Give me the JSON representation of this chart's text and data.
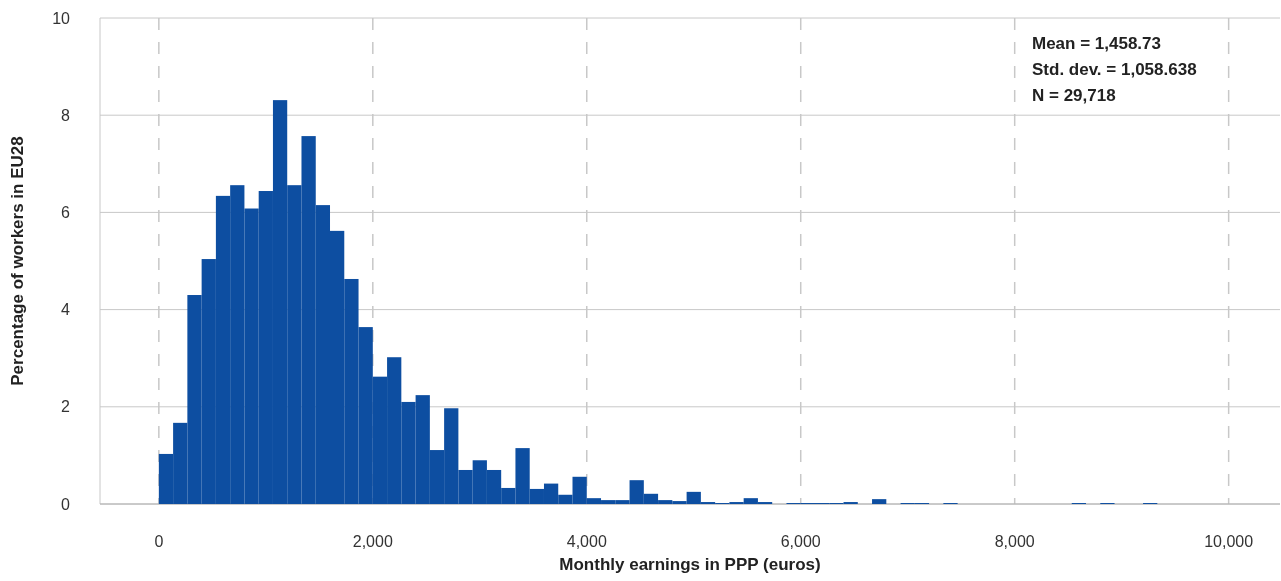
{
  "chart_data": {
    "type": "histogram",
    "xlabel": "Monthly earnings in PPP (euros)",
    "ylabel": "Percentage of workers in EU28",
    "color": "#0d4ea1",
    "bins": [
      0,
      133.33,
      266.67,
      400,
      533.33,
      666.67,
      800,
      933.33,
      1066.67,
      1200,
      1333.33,
      1466.67,
      1600,
      1733.33,
      1866.67,
      2000,
      2133.33,
      2266.67,
      2400,
      2533.33,
      2666.67,
      2800,
      2933.33,
      3066.67,
      3200,
      3333.33,
      3466.67,
      3600,
      3733.33,
      3866.67,
      4000,
      4133.33,
      4266.67,
      4400,
      4533.33,
      4666.67,
      4800,
      4933.33,
      5066.67,
      5200,
      5333.33,
      5466.67,
      5600,
      5733.33,
      5866.67,
      6000,
      6133.33,
      6266.67,
      6400,
      6533.33,
      6666.67,
      6800,
      6933.33,
      7066.67,
      7200,
      7333.33,
      7466.67,
      7600,
      7733.33,
      7866.67,
      8000,
      8133.33,
      8266.67,
      8400,
      8533.33,
      8666.67,
      8800,
      8933.33,
      9066.67,
      9200,
      9333.33
    ],
    "values": [
      1.03,
      1.67,
      4.3,
      5.04,
      6.34,
      6.56,
      6.08,
      6.44,
      8.31,
      6.56,
      7.57,
      6.15,
      5.62,
      4.63,
      3.64,
      2.62,
      3.02,
      2.1,
      2.24,
      1.11,
      1.97,
      0.7,
      0.9,
      0.7,
      0.33,
      1.15,
      0.31,
      0.42,
      0.19,
      0.56,
      0.12,
      0.08,
      0.08,
      0.49,
      0.21,
      0.08,
      0.06,
      0.25,
      0.04,
      0.02,
      0.04,
      0.12,
      0.04,
      0,
      0.02,
      0.02,
      0.02,
      0.02,
      0.04,
      0,
      0.1,
      0,
      0.02,
      0.02,
      0,
      0.02,
      0,
      0,
      0,
      0,
      0,
      0,
      0,
      0,
      0.02,
      0,
      0.02,
      0,
      0,
      0.02
    ],
    "xlim": [
      -550,
      10480
    ],
    "ylim": [
      0,
      10
    ],
    "xticks": [
      0,
      {
        "value": 2000,
        "label": "2,000"
      },
      {
        "value": 4000,
        "label": "4,000"
      },
      {
        "value": 6000,
        "label": "6,000"
      },
      {
        "value": 8000,
        "label": "8,000"
      },
      {
        "value": 10000,
        "label": "10,000"
      }
    ],
    "yticks": [
      0,
      2,
      4,
      6,
      8,
      10
    ],
    "grid": true,
    "annotations": [
      "Mean = 1,458.73",
      "Std. dev. = 1,058.638",
      "N = 29,718"
    ]
  }
}
